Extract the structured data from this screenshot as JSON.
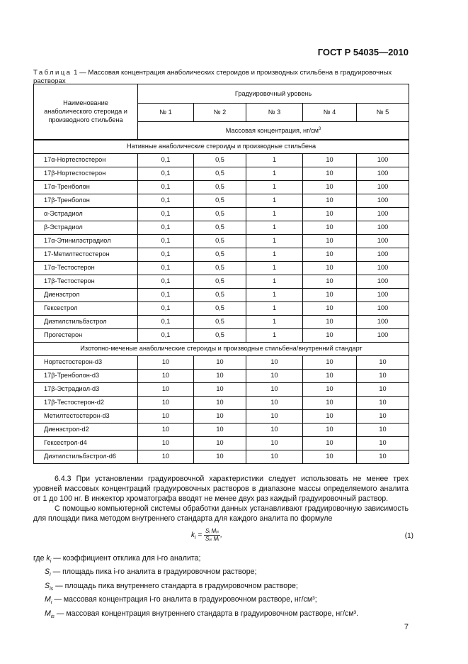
{
  "header": "ГОСТ Р 54035—2010",
  "caption": {
    "label": "Таблица",
    "rest": " 1 — Массовая концентрация анаболических стероидов и производных стильбена в градуировочных растворах"
  },
  "table": {
    "col_name": "Наименование анаболического стероида и производного стильбена",
    "level_header": "Градуировочный уровень",
    "levels": [
      "№ 1",
      "№ 2",
      "№ 3",
      "№ 4",
      "№ 5"
    ],
    "unit": "Массовая концентрация, нг/см",
    "unit_sup": "3",
    "sections": [
      {
        "title": "Нативные анаболические стероиды и производные стильбена",
        "rows": [
          {
            "name": "17α-Нортестостерон",
            "values": [
              "0,1",
              "0,5",
              "1",
              "10",
              "100"
            ]
          },
          {
            "name": "17β-Нортестостерон",
            "values": [
              "0,1",
              "0,5",
              "1",
              "10",
              "100"
            ]
          },
          {
            "name": "17α-Тренболон",
            "values": [
              "0,1",
              "0,5",
              "1",
              "10",
              "100"
            ]
          },
          {
            "name": "17β-Тренболон",
            "values": [
              "0,1",
              "0,5",
              "1",
              "10",
              "100"
            ]
          },
          {
            "name": "α-Эстрадиол",
            "values": [
              "0,1",
              "0,5",
              "1",
              "10",
              "100"
            ]
          },
          {
            "name": "β-Эстрадиол",
            "values": [
              "0,1",
              "0,5",
              "1",
              "10",
              "100"
            ]
          },
          {
            "name": "17α-Этинилэстрадиол",
            "values": [
              "0,1",
              "0,5",
              "1",
              "10",
              "100"
            ]
          },
          {
            "name": "17-Метилтестостерон",
            "values": [
              "0,1",
              "0,5",
              "1",
              "10",
              "100"
            ]
          },
          {
            "name": "17α-Тестостерон",
            "values": [
              "0,1",
              "0,5",
              "1",
              "10",
              "100"
            ]
          },
          {
            "name": "17β-Тестостерон",
            "values": [
              "0,1",
              "0,5",
              "1",
              "10",
              "100"
            ]
          },
          {
            "name": "Диенэстрол",
            "values": [
              "0,1",
              "0,5",
              "1",
              "10",
              "100"
            ]
          },
          {
            "name": "Гексестрол",
            "values": [
              "0,1",
              "0,5",
              "1",
              "10",
              "100"
            ]
          },
          {
            "name": "Диэтилстильбэстрол",
            "values": [
              "0,1",
              "0,5",
              "1",
              "10",
              "100"
            ]
          },
          {
            "name": "Прогестерон",
            "values": [
              "0,1",
              "0,5",
              "1",
              "10",
              "100"
            ]
          }
        ]
      },
      {
        "title": "Изотопно-меченые анаболические стероиды и производные стильбена/внутренний стандарт",
        "rows": [
          {
            "name": "Нортестостерон-d3",
            "values": [
              "10",
              "10",
              "10",
              "10",
              "10"
            ]
          },
          {
            "name": "17β-Тренболон-d3",
            "values": [
              "10",
              "10",
              "10",
              "10",
              "10"
            ]
          },
          {
            "name": "17β-Эстрадиол-d3",
            "values": [
              "10",
              "10",
              "10",
              "10",
              "10"
            ]
          },
          {
            "name": "17β-Тестостерон-d2",
            "values": [
              "10",
              "10",
              "10",
              "10",
              "10"
            ]
          },
          {
            "name": "Метилтестостерон-d3",
            "values": [
              "10",
              "10",
              "10",
              "10",
              "10"
            ]
          },
          {
            "name": "Диенэстрол-d2",
            "values": [
              "10",
              "10",
              "10",
              "10",
              "10"
            ]
          },
          {
            "name": "Гексестрол-d4",
            "values": [
              "10",
              "10",
              "10",
              "10",
              "10"
            ]
          },
          {
            "name": "Диэтилстильбэстрол-d6",
            "values": [
              "10",
              "10",
              "10",
              "10",
              "10"
            ]
          }
        ]
      }
    ]
  },
  "text": {
    "p1": "6.4.3 При установлении градуировочной характеристики следует использовать не менее трех уровней массовых концентраций градуировочных растворов в диапазоне массы определяемого аналита от 1 до 100 нг. В инжектор хроматографа вводят не менее двух раз каждый градуировочный раствор.",
    "p2": "С помощью компьютерной системы обработки данных устанавливают градуировочную зависимость для площади пика методом внутреннего стандарта для каждого аналита по формуле"
  },
  "formula": {
    "lhs": "k",
    "lhs_sub": "i",
    "num": "Sᵢ Mᵢₛ",
    "den": "Sᵢₛ Mᵢ",
    "number": "(1)"
  },
  "where": [
    {
      "prefix": "где ",
      "sym": "k",
      "sub": "i",
      "desc": " — коэффициент отклика для i-го аналита;"
    },
    {
      "prefix": "",
      "sym": "S",
      "sub": "i",
      "desc": " — площадь пика i-го аналита в градуировочном растворе;"
    },
    {
      "prefix": "",
      "sym": "S",
      "sub": "is",
      "desc": " — площадь пика внутреннего стандарта в градуировочном растворе;"
    },
    {
      "prefix": "",
      "sym": "M",
      "sub": "i",
      "desc": " — массовая концентрация i-го аналита в градуировочном растворе, нг/см³;"
    },
    {
      "prefix": "",
      "sym": "M",
      "sub": "is",
      "desc": " — массовая концентрация внутреннего стандарта в градуировочном растворе,  нг/см³."
    }
  ],
  "page_number": "7"
}
